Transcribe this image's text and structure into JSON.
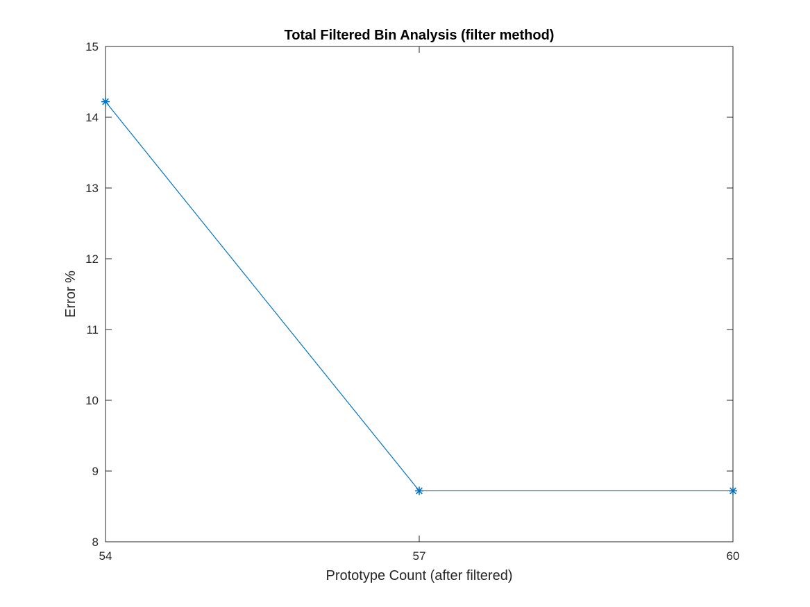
{
  "chart_data": {
    "type": "line",
    "title": "Total Filtered Bin Analysis (filter method)",
    "xlabel": "Prototype Count (after filtered)",
    "ylabel": "Error %",
    "x": [
      54,
      57,
      60
    ],
    "series": [
      {
        "values": [
          14.22,
          8.72,
          8.72
        ],
        "color": "#0072BD",
        "marker": "asterisk"
      }
    ],
    "xlim": [
      54,
      60
    ],
    "ylim": [
      8,
      15
    ],
    "xticks": [
      54,
      57,
      60
    ],
    "yticks": [
      8,
      9,
      10,
      11,
      12,
      13,
      14,
      15
    ],
    "grid": false,
    "legend": "none",
    "colors": {
      "axis": "#262626",
      "title": "#000000",
      "background": "#ffffff"
    }
  }
}
